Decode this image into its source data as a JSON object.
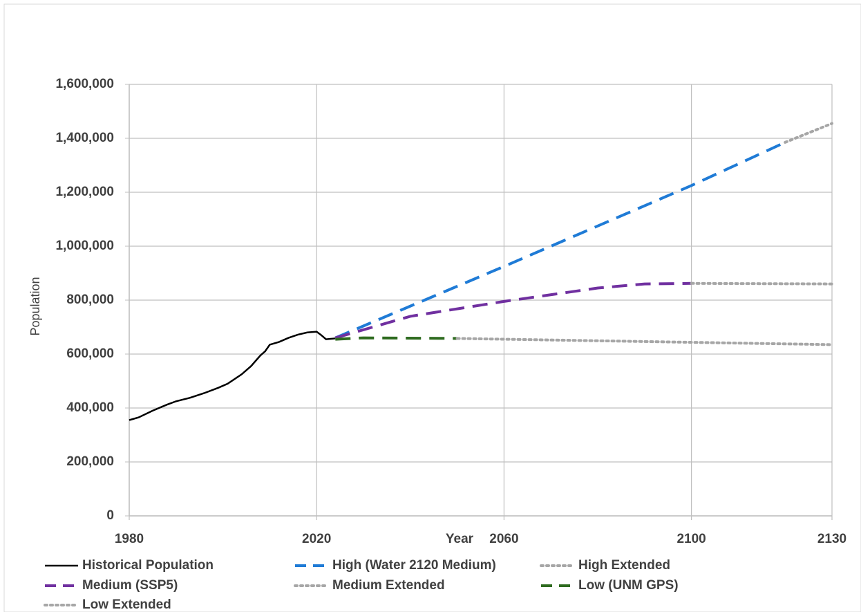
{
  "chart_data": {
    "type": "line",
    "x_label": "Year",
    "y_label": "Population",
    "xlim": [
      1980,
      2130
    ],
    "xticks": [
      1980,
      2020,
      2060,
      2100,
      2130
    ],
    "ylim": [
      0,
      1600000
    ],
    "yticks": [
      0,
      {
        "value": 200000,
        "label": "200,000"
      },
      {
        "value": 400000,
        "label": "400,000"
      },
      {
        "value": 600000,
        "label": "600,000"
      },
      {
        "value": 800000,
        "label": "800,000"
      },
      {
        "value": 1000000,
        "label": "1,000,000"
      },
      {
        "value": 1200000,
        "label": "1,200,000"
      },
      {
        "value": 1400000,
        "label": "1,400,000"
      },
      {
        "value": 1600000,
        "label": "1,600,000"
      }
    ],
    "grid": true,
    "series": [
      {
        "name": "Historical Population",
        "color": "#000000",
        "style": "solid",
        "x": [
          1980,
          1982,
          1985,
          1988,
          1990,
          1993,
          1996,
          1999,
          2001,
          2004,
          2006,
          2008,
          2009,
          2010,
          2012,
          2014,
          2016,
          2018,
          2020,
          2021,
          2022,
          2024
        ],
        "values": [
          355000,
          365000,
          390000,
          412000,
          425000,
          438000,
          455000,
          475000,
          490000,
          525000,
          555000,
          595000,
          610000,
          635000,
          645000,
          660000,
          672000,
          680000,
          683000,
          670000,
          655000,
          658000
        ]
      },
      {
        "name": "High (Water 2120 Medium)",
        "color": "#1f7bd6",
        "style": "dashed",
        "x": [
          2024,
          2060,
          2100,
          2120
        ],
        "values": [
          660000,
          925000,
          1225000,
          1385000
        ]
      },
      {
        "name": "High Extended",
        "color": "#a6a6a6",
        "style": "dotted",
        "x": [
          2120,
          2130
        ],
        "values": [
          1385000,
          1455000
        ]
      },
      {
        "name": "Medium (SSP5)",
        "color": "#7030a0",
        "style": "dashed",
        "x": [
          2024,
          2040,
          2060,
          2080,
          2090,
          2100
        ],
        "values": [
          660000,
          740000,
          795000,
          845000,
          860000,
          862000
        ]
      },
      {
        "name": "Medium Extended",
        "color": "#a6a6a6",
        "style": "dotted",
        "x": [
          2100,
          2130
        ],
        "values": [
          862000,
          860000
        ]
      },
      {
        "name": "Low (UNM GPS)",
        "color": "#2e6b1f",
        "style": "dashed",
        "x": [
          2024,
          2030,
          2050
        ],
        "values": [
          655000,
          660000,
          658000
        ]
      },
      {
        "name": "Low Extended",
        "color": "#a6a6a6",
        "style": "dotted",
        "x": [
          2050,
          2130
        ],
        "values": [
          658000,
          635000
        ]
      }
    ]
  }
}
